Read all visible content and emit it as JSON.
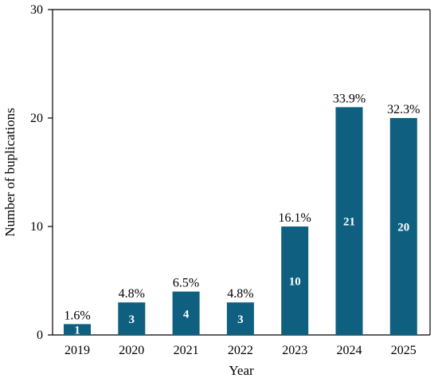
{
  "chart_data": {
    "type": "bar",
    "title": "",
    "xlabel": "Year",
    "ylabel": "Number of buplications",
    "ylim": [
      0,
      30
    ],
    "yticks": [
      "0",
      "10",
      "20",
      "30"
    ],
    "grid": false,
    "legend": "none",
    "categories": [
      "2019",
      "2020",
      "2021",
      "2022",
      "2023",
      "2024",
      "2025"
    ],
    "values": [
      1,
      3,
      4,
      3,
      10,
      21,
      20
    ],
    "count_labels": [
      "1",
      "3",
      "4",
      "3",
      "10",
      "21",
      "20"
    ],
    "percent_labels": [
      "1.6%",
      "4.8%",
      "6.5%",
      "4.8%",
      "16.1%",
      "33.9%",
      "32.3%"
    ],
    "bar_color": "#0f5f80"
  }
}
